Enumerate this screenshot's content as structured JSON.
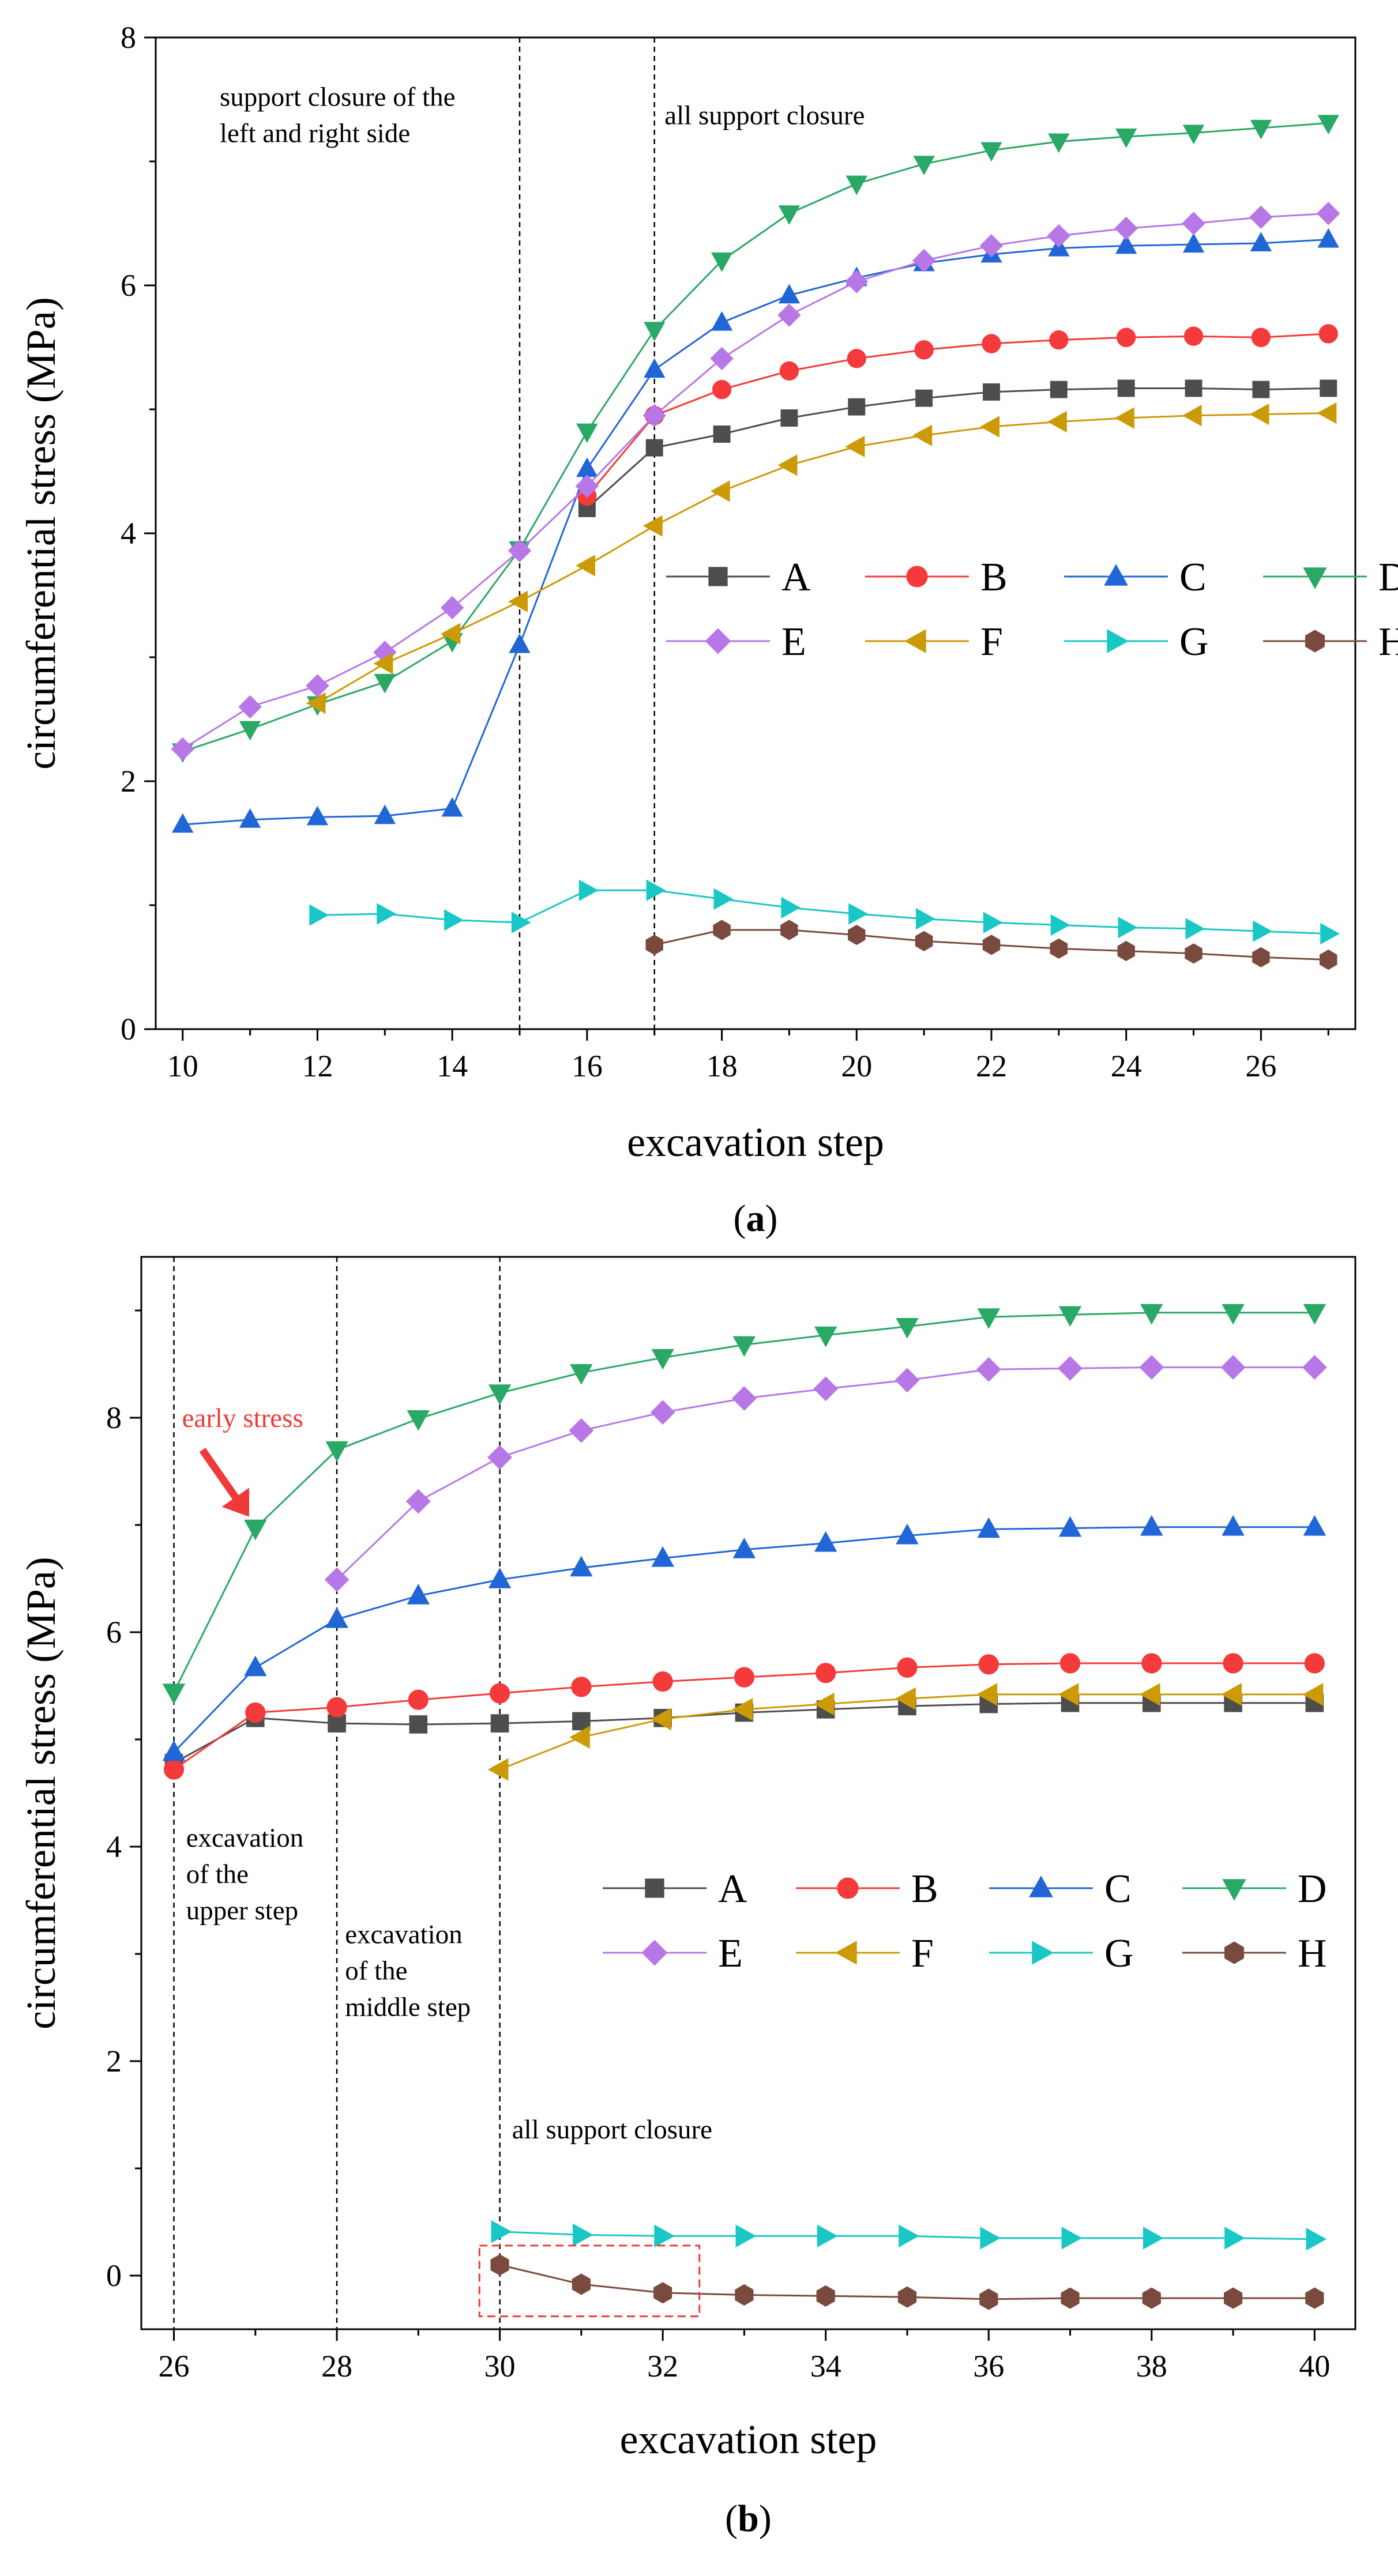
{
  "colors": {
    "A": "#4d4d4d",
    "B": "#f43a3a",
    "C": "#2166d6",
    "D": "#2aa866",
    "E": "#b877e6",
    "F": "#cc9a06",
    "G": "#19c7c7",
    "H": "#7a4a3e",
    "annotation_red": "#f03a3a"
  },
  "chart_data": [
    {
      "type": "line",
      "panel_label": "(a)",
      "panel_letter": "a",
      "xlabel": "excavation step",
      "ylabel": "circumferential stress (MPa)",
      "xlim": [
        9.6,
        27.4
      ],
      "ylim": [
        0,
        8
      ],
      "xticks": [
        10,
        12,
        14,
        16,
        18,
        20,
        22,
        24,
        26
      ],
      "yticks": [
        0,
        2,
        4,
        6,
        8
      ],
      "vlines": [
        15,
        17
      ],
      "annotations": [
        {
          "lines": [
            "support closure of the",
            "left and right side"
          ],
          "x": 10.55,
          "y": 7.45
        },
        {
          "lines": [
            "all support closure"
          ],
          "x": 17.15,
          "y": 7.3
        }
      ],
      "legend": {
        "position": "center-right",
        "entries": [
          "A",
          "B",
          "C",
          "D",
          "E",
          "F",
          "G",
          "H"
        ]
      },
      "series": [
        {
          "name": "A",
          "marker": "square",
          "x": [
            16,
            17,
            18,
            19,
            20,
            21,
            22,
            23,
            24,
            25,
            26,
            27
          ],
          "values": [
            4.2,
            4.69,
            4.8,
            4.93,
            5.02,
            5.09,
            5.14,
            5.16,
            5.17,
            5.17,
            5.16,
            5.17
          ]
        },
        {
          "name": "B",
          "marker": "circle",
          "x": [
            16,
            17,
            18,
            19,
            20,
            21,
            22,
            23,
            24,
            25,
            26,
            27
          ],
          "values": [
            4.3,
            4.95,
            5.16,
            5.31,
            5.41,
            5.48,
            5.53,
            5.56,
            5.58,
            5.59,
            5.58,
            5.61
          ]
        },
        {
          "name": "C",
          "marker": "triangle-up",
          "x": [
            10,
            11,
            12,
            13,
            14,
            15,
            16,
            17,
            18,
            19,
            20,
            21,
            22,
            23,
            24,
            25,
            26,
            27
          ],
          "values": [
            1.65,
            1.69,
            1.71,
            1.72,
            1.78,
            3.1,
            4.52,
            5.32,
            5.7,
            5.92,
            6.06,
            6.18,
            6.25,
            6.3,
            6.32,
            6.33,
            6.34,
            6.37
          ]
        },
        {
          "name": "D",
          "marker": "triangle-down",
          "x": [
            10,
            11,
            12,
            13,
            14,
            15,
            16,
            17,
            18,
            19,
            20,
            21,
            22,
            23,
            24,
            25,
            26,
            27
          ],
          "values": [
            2.24,
            2.42,
            2.62,
            2.8,
            3.13,
            3.87,
            4.82,
            5.64,
            6.2,
            6.58,
            6.82,
            6.98,
            7.09,
            7.16,
            7.2,
            7.23,
            7.27,
            7.31
          ]
        },
        {
          "name": "E",
          "marker": "diamond",
          "x": [
            10,
            11,
            12,
            13,
            14,
            15,
            16,
            17,
            18,
            19,
            20,
            21,
            22,
            23,
            24,
            25,
            26,
            27
          ],
          "values": [
            2.26,
            2.6,
            2.77,
            3.04,
            3.4,
            3.86,
            4.38,
            4.95,
            5.41,
            5.76,
            6.03,
            6.2,
            6.32,
            6.4,
            6.46,
            6.5,
            6.55,
            6.58
          ]
        },
        {
          "name": "F",
          "marker": "triangle-left",
          "x": [
            12,
            13,
            14,
            15,
            16,
            17,
            18,
            19,
            20,
            21,
            22,
            23,
            24,
            25,
            26,
            27
          ],
          "values": [
            2.63,
            2.95,
            3.19,
            3.45,
            3.74,
            4.06,
            4.34,
            4.55,
            4.7,
            4.79,
            4.86,
            4.9,
            4.93,
            4.95,
            4.96,
            4.97
          ]
        },
        {
          "name": "G",
          "marker": "triangle-right",
          "x": [
            12,
            13,
            14,
            15,
            16,
            17,
            18,
            19,
            20,
            21,
            22,
            23,
            24,
            25,
            26,
            27
          ],
          "values": [
            0.92,
            0.93,
            0.88,
            0.86,
            1.12,
            1.12,
            1.05,
            0.98,
            0.93,
            0.89,
            0.86,
            0.84,
            0.82,
            0.81,
            0.79,
            0.77
          ]
        },
        {
          "name": "H",
          "marker": "hexagon",
          "x": [
            17,
            18,
            19,
            20,
            21,
            22,
            23,
            24,
            25,
            26,
            27
          ],
          "values": [
            0.68,
            0.8,
            0.8,
            0.76,
            0.71,
            0.68,
            0.65,
            0.63,
            0.61,
            0.58,
            0.56
          ]
        }
      ]
    },
    {
      "type": "line",
      "panel_label": "(b)",
      "panel_letter": "b",
      "xlabel": "excavation step",
      "ylabel": "circumferential stress (MPa)",
      "xlim": [
        25.6,
        40.5
      ],
      "ylim": [
        -0.5,
        9.5
      ],
      "xticks": [
        26,
        28,
        30,
        32,
        34,
        36,
        38,
        40
      ],
      "yticks": [
        0,
        2,
        4,
        6,
        8
      ],
      "vlines": [
        26,
        28,
        30
      ],
      "annotations": [
        {
          "lines": [
            "excavation",
            "of the",
            "upper step"
          ],
          "x": 26.15,
          "y": 4.0
        },
        {
          "lines": [
            "excavation",
            "of the",
            "middle step"
          ],
          "x": 28.1,
          "y": 3.1
        },
        {
          "lines": [
            "all support closure"
          ],
          "x": 30.15,
          "y": 1.28
        }
      ],
      "callout": {
        "text": "early stress",
        "x": 26.1,
        "y": 8.0
      },
      "highlight_box": {
        "x0": 29.75,
        "x1": 32.45,
        "y0": -0.38,
        "y1": 0.28
      },
      "legend": {
        "position": "center-right",
        "entries": [
          "A",
          "B",
          "C",
          "D",
          "E",
          "F",
          "G",
          "H"
        ]
      },
      "series": [
        {
          "name": "A",
          "marker": "square",
          "x": [
            26,
            27,
            28,
            29,
            30,
            31,
            32,
            33,
            34,
            35,
            36,
            37,
            38,
            39,
            40
          ],
          "values": [
            4.78,
            5.2,
            5.15,
            5.14,
            5.15,
            5.17,
            5.2,
            5.25,
            5.28,
            5.31,
            5.33,
            5.34,
            5.34,
            5.34,
            5.34
          ]
        },
        {
          "name": "B",
          "marker": "circle",
          "x": [
            26,
            27,
            28,
            29,
            30,
            31,
            32,
            33,
            34,
            35,
            36,
            37,
            38,
            39,
            40
          ],
          "values": [
            4.72,
            5.25,
            5.3,
            5.37,
            5.43,
            5.49,
            5.54,
            5.58,
            5.62,
            5.67,
            5.7,
            5.71,
            5.71,
            5.71,
            5.71
          ]
        },
        {
          "name": "C",
          "marker": "triangle-up",
          "x": [
            26,
            27,
            28,
            29,
            30,
            31,
            32,
            33,
            34,
            35,
            36,
            37,
            38,
            39,
            40
          ],
          "values": [
            4.88,
            5.67,
            6.12,
            6.34,
            6.49,
            6.6,
            6.69,
            6.77,
            6.83,
            6.9,
            6.96,
            6.97,
            6.98,
            6.98,
            6.98
          ]
        },
        {
          "name": "D",
          "marker": "triangle-down",
          "x": [
            26,
            27,
            28,
            29,
            30,
            31,
            32,
            33,
            34,
            35,
            36,
            37,
            38,
            39,
            40
          ],
          "values": [
            5.44,
            6.97,
            7.7,
            7.99,
            8.23,
            8.42,
            8.56,
            8.68,
            8.77,
            8.85,
            8.94,
            8.96,
            8.98,
            8.98,
            8.98
          ]
        },
        {
          "name": "E",
          "marker": "diamond",
          "x": [
            28,
            29,
            30,
            31,
            32,
            33,
            34,
            35,
            36,
            37,
            38,
            39,
            40
          ],
          "values": [
            6.49,
            7.22,
            7.63,
            7.88,
            8.05,
            8.18,
            8.27,
            8.35,
            8.45,
            8.46,
            8.47,
            8.47,
            8.47
          ]
        },
        {
          "name": "F",
          "marker": "triangle-left",
          "x": [
            30,
            31,
            32,
            33,
            34,
            35,
            36,
            37,
            38,
            39,
            40
          ],
          "values": [
            4.72,
            5.02,
            5.19,
            5.28,
            5.33,
            5.38,
            5.42,
            5.42,
            5.42,
            5.42,
            5.42
          ]
        },
        {
          "name": "G",
          "marker": "triangle-right",
          "x": [
            30,
            31,
            32,
            33,
            34,
            35,
            36,
            37,
            38,
            39,
            40
          ],
          "values": [
            0.41,
            0.38,
            0.37,
            0.37,
            0.37,
            0.37,
            0.35,
            0.35,
            0.35,
            0.35,
            0.34
          ]
        },
        {
          "name": "H",
          "marker": "hexagon",
          "x": [
            30,
            31,
            32,
            33,
            34,
            35,
            36,
            37,
            38,
            39,
            40
          ],
          "values": [
            0.1,
            -0.08,
            -0.16,
            -0.18,
            -0.19,
            -0.2,
            -0.22,
            -0.21,
            -0.21,
            -0.21,
            -0.21
          ]
        }
      ]
    }
  ]
}
